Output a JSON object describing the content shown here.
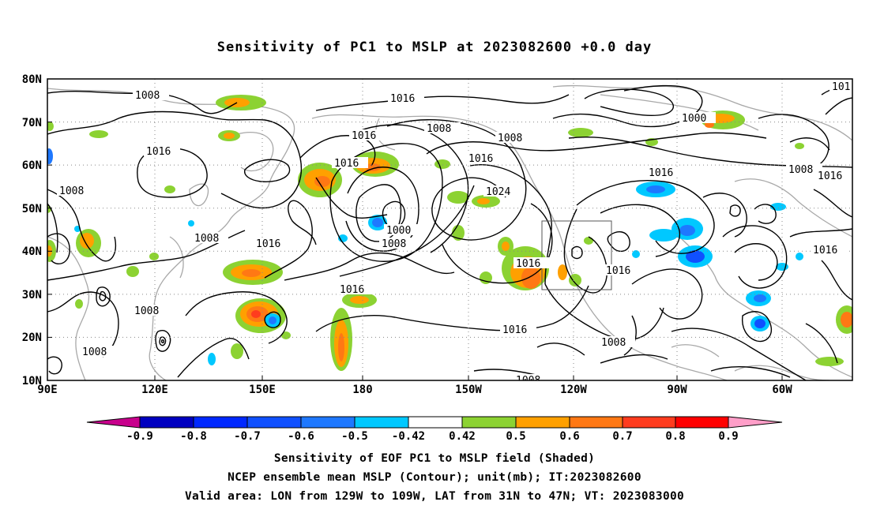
{
  "title": "Sensitivity of PC1 to MSLP at 2023082600 +0.0 day",
  "lat_labels": [
    "80N",
    "70N",
    "60N",
    "50N",
    "40N",
    "30N",
    "20N",
    "10N"
  ],
  "lon_labels": [
    "90E",
    "120E",
    "150E",
    "180",
    "150W",
    "120W",
    "90W",
    "60W"
  ],
  "colorbar": {
    "labels": [
      "-0.9",
      "-0.8",
      "-0.7",
      "-0.6",
      "-0.5",
      "-0.42",
      "0.42",
      "0.5",
      "0.6",
      "0.7",
      "0.8",
      "0.9"
    ],
    "colors": [
      "#c8008c",
      "#0000c0",
      "#0028ff",
      "#1050ff",
      "#1e78ff",
      "#00c8ff",
      "#ffffff",
      "#8cd232",
      "#ffa000",
      "#ff7814",
      "#ff3c1e",
      "#ff0000",
      "#ff9ec8"
    ]
  },
  "contour_labels": [
    {
      "text": "1008"
    },
    {
      "text": "1016"
    },
    {
      "text": "1008"
    },
    {
      "text": "1008"
    },
    {
      "text": "1008"
    },
    {
      "text": "1008"
    },
    {
      "text": "1016"
    },
    {
      "text": "1016"
    },
    {
      "text": "1016"
    },
    {
      "text": "1008"
    },
    {
      "text": "1000"
    },
    {
      "text": "1008"
    },
    {
      "text": "1008"
    },
    {
      "text": "1016"
    },
    {
      "text": "1024"
    },
    {
      "text": "1016"
    },
    {
      "text": "1016"
    },
    {
      "text": "1016"
    },
    {
      "text": "1008"
    },
    {
      "text": "1000"
    },
    {
      "text": "1016"
    },
    {
      "text": "1008"
    },
    {
      "text": "1016"
    },
    {
      "text": "1016"
    },
    {
      "text": "101"
    },
    {
      "text": "1008"
    },
    {
      "text": "1008"
    }
  ],
  "captions": {
    "line1": "Sensitivity of EOF PC1 to MSLP field (Shaded)",
    "line2": "NCEP ensemble mean MSLP (Contour); unit(mb); IT:2023082600",
    "line3": "Valid area: LON from 129W to 109W, LAT from 31N to 47N; VT: 2023083000"
  }
}
